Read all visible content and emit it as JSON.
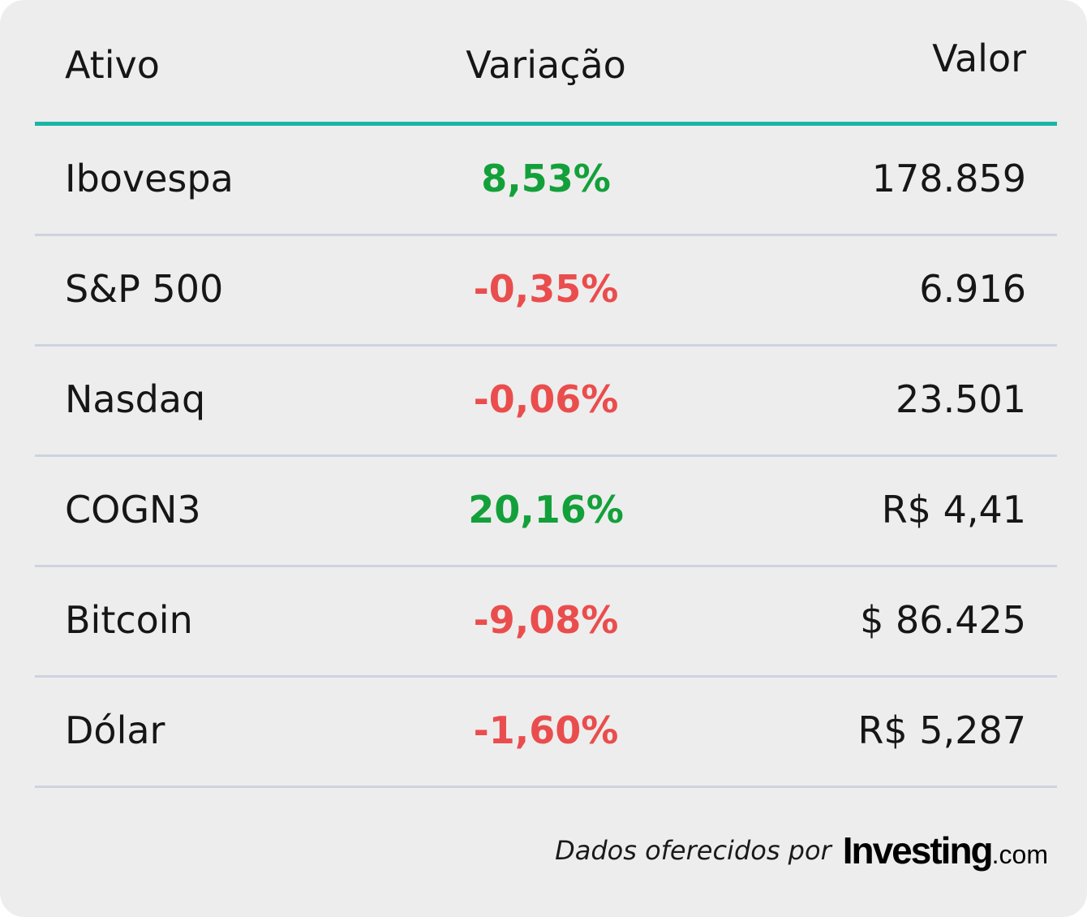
{
  "table": {
    "headers": {
      "asset": "Ativo",
      "change": "Variação",
      "value": "Valor"
    },
    "rows": [
      {
        "asset": "Ibovespa",
        "change": "8,53%",
        "value": "178.859",
        "trend": "positive"
      },
      {
        "asset": "S&P 500",
        "change": "-0,35%",
        "value": "6.916",
        "trend": "negative"
      },
      {
        "asset": "Nasdaq",
        "change": "-0,06%",
        "value": "23.501",
        "trend": "negative"
      },
      {
        "asset": "COGN3",
        "change": "20,16%",
        "value": "R$ 4,41",
        "trend": "positive"
      },
      {
        "asset": "Bitcoin",
        "change": "-9,08%",
        "value": "$ 86.425",
        "trend": "negative"
      },
      {
        "asset": "Dólar",
        "change": "-1,60%",
        "value": "R$ 5,287",
        "trend": "negative"
      }
    ]
  },
  "footer": {
    "label": "Dados oferecidos por",
    "brand": "Investing",
    "brand_suffix": ".com"
  },
  "colors": {
    "background": "#ededed",
    "accent_rule": "#1ab5a6",
    "divider": "#cfd2e0",
    "positive": "#13a03a",
    "negative": "#ea4d4d",
    "text": "#161616"
  }
}
